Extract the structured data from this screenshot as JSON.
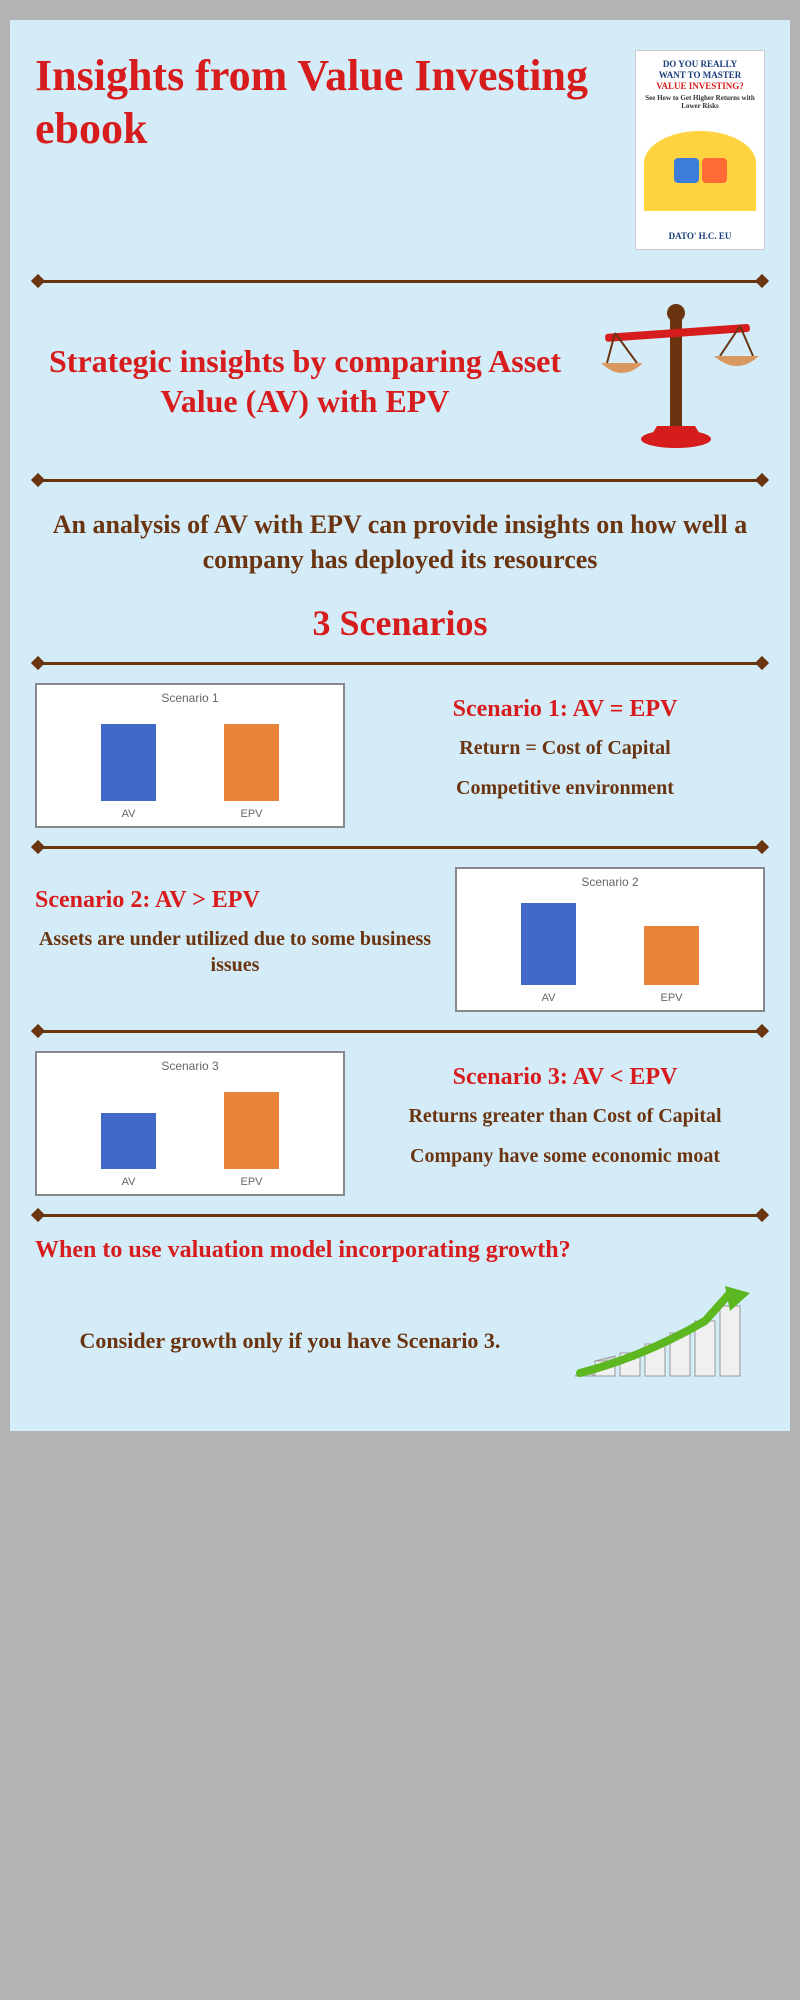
{
  "title": "Insights from Value Investing ebook",
  "book": {
    "heading_line1": "DO YOU REALLY",
    "heading_line2": "WANT TO MASTER",
    "heading_line3": "VALUE INVESTING?",
    "subtitle": "See How to Get Higher Returns with Lower Risks",
    "author": "DATO' H.C. EU"
  },
  "subtitle": "Strategic insights by comparing Asset Value (AV) with EPV",
  "intro_text": "An analysis of AV with EPV can provide insights on how well a company has deployed its resources",
  "scenarios_heading": "3 Scenarios",
  "colors": {
    "red": "#d61c1c",
    "brown": "#6b3410",
    "bg": "#d4ecf7",
    "bar_av": "#4169c7",
    "bar_epv": "#e8833a",
    "scales_cup": "#d89860",
    "scales_pole": "#6b3410"
  },
  "scenario1": {
    "chart_title": "Scenario 1",
    "labels": [
      "AV",
      "EPV"
    ],
    "av_height": 85,
    "epv_height": 85,
    "heading": "Scenario 1: AV = EPV",
    "line1": "Return = Cost of Capital",
    "line2": "Competitive environment"
  },
  "scenario2": {
    "chart_title": "Scenario 2",
    "labels": [
      "AV",
      "EPV"
    ],
    "av_height": 90,
    "epv_height": 65,
    "heading": "Scenario 2: AV > EPV",
    "line1": "Assets are under utilized due to some business issues"
  },
  "scenario3": {
    "chart_title": "Scenario 3",
    "labels": [
      "AV",
      "EPV"
    ],
    "av_height": 62,
    "epv_height": 85,
    "heading": "Scenario 3: AV < EPV",
    "line1": "Returns greater than Cost of Capital",
    "line2": "Company have some economic moat"
  },
  "growth": {
    "question": "When to use valuation model incorporating growth?",
    "answer": "Consider growth only if you have Scenario 3."
  }
}
